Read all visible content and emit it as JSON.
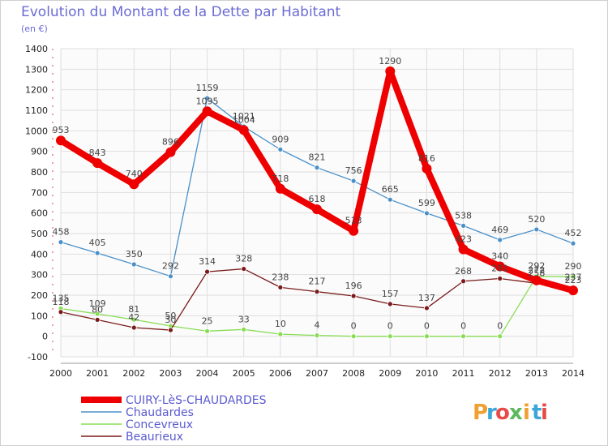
{
  "header": {
    "title": "Evolution du Montant de la Dette par Habitant",
    "subtitle": "(en €)"
  },
  "brand": {
    "letters": [
      "P",
      "r",
      "o",
      "x",
      "i",
      "t",
      "i"
    ],
    "colors": [
      "#f0a030",
      "#3aa7d8",
      "#e84a4a",
      "#5cb85c",
      "#f0a030",
      "#3aa7d8",
      "#e84a4a"
    ]
  },
  "chart_data": {
    "type": "line",
    "x": [
      "2000",
      "2001",
      "2002",
      "2003",
      "2004",
      "2005",
      "2006",
      "2007",
      "2008",
      "2009",
      "2010",
      "2011",
      "2012",
      "2013",
      "2014"
    ],
    "ylim": [
      -100,
      1400
    ],
    "yticks": [
      "-100",
      "0",
      "100",
      "200",
      "300",
      "400",
      "500",
      "600",
      "700",
      "800",
      "900",
      "1000",
      "1100",
      "1200",
      "1300",
      "1400"
    ],
    "grid": true,
    "legend_position": "bottom-left",
    "series": [
      {
        "name": "CUIRY-LèS-CHAUDARDES",
        "color": "#ee0000",
        "values": [
          953,
          843,
          740,
          896,
          1095,
          1004,
          718,
          618,
          513,
          1290,
          816,
          423,
          340,
          272,
          223
        ],
        "labels": [
          "953",
          "843",
          "740",
          "896",
          "1095",
          "1004",
          "718",
          "618",
          "513",
          "1290",
          "816",
          "423",
          "340",
          "272",
          "223"
        ]
      },
      {
        "name": "Chaudardes",
        "color": "#4a90c8",
        "values": [
          458,
          405,
          350,
          292,
          1159,
          1021,
          909,
          821,
          756,
          665,
          599,
          538,
          469,
          520,
          452
        ],
        "labels": [
          "458",
          "405",
          "350",
          "292",
          "1159",
          "1021",
          "909",
          "821",
          "756",
          "665",
          "599",
          "538",
          "469",
          "520",
          "452"
        ]
      },
      {
        "name": "Concevreux",
        "color": "#88dd55",
        "values": [
          135,
          109,
          81,
          50,
          25,
          33,
          10,
          4,
          0,
          0,
          0,
          0,
          0,
          292,
          290
        ],
        "labels": [
          "135",
          "109",
          "81",
          "50",
          "25",
          "33",
          "10",
          "4",
          "0",
          "0",
          "0",
          "0",
          "0",
          "292",
          "290"
        ]
      },
      {
        "name": "Beaurieux",
        "color": "#7a1a1a",
        "values": [
          118,
          80,
          42,
          30,
          314,
          328,
          238,
          217,
          196,
          157,
          137,
          268,
          281,
          258,
          237
        ],
        "labels": [
          "118",
          "80",
          "42",
          "30",
          "314",
          "328",
          "238",
          "217",
          "196",
          "157",
          "137",
          "268",
          "281",
          "258",
          "237"
        ]
      }
    ]
  }
}
